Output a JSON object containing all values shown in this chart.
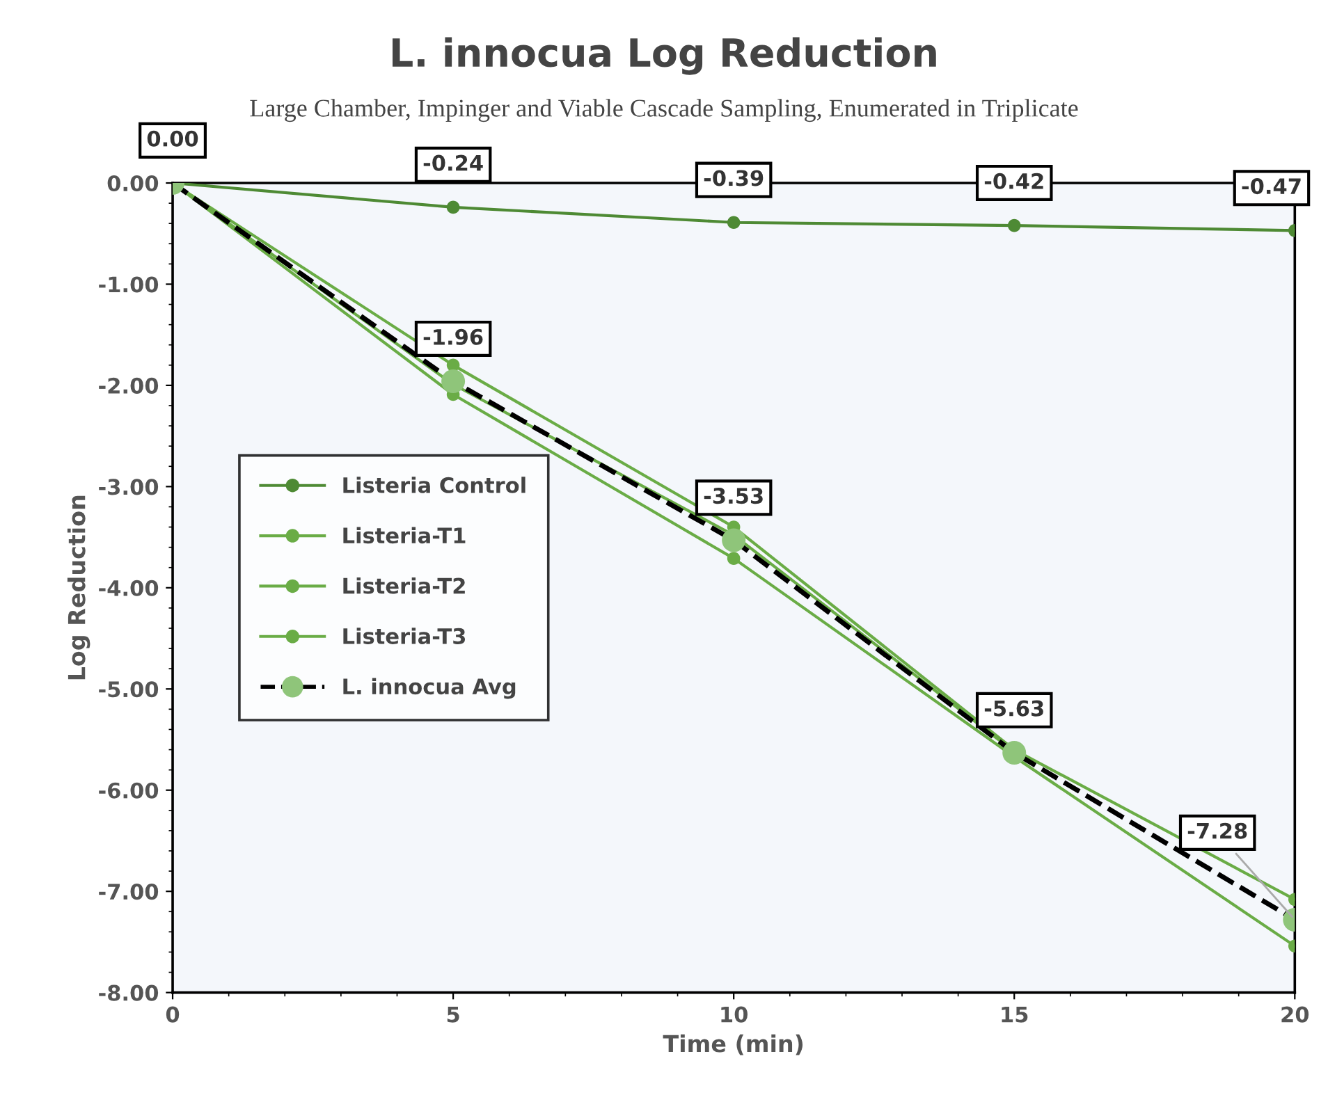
{
  "chart_data": {
    "type": "line",
    "title": "L. innocua Log Reduction",
    "subtitle": "Large Chamber, Impinger and Viable Cascade Sampling, Enumerated in Triplicate",
    "xlabel": "Time (min)",
    "ylabel": "Log Reduction",
    "x": [
      0,
      5,
      10,
      15,
      20
    ],
    "series": [
      {
        "name": "Listeria Control",
        "color": "#4e8a34",
        "values": [
          0,
          -0.24,
          -0.39,
          -0.42,
          -0.47
        ],
        "value_labels": [
          "0.00",
          "-0.24",
          "-0.39",
          "-0.42",
          "-0.47"
        ]
      },
      {
        "name": "Listeria-T1",
        "color": "#6aac46",
        "values": [
          0,
          -1.8,
          -3.4,
          -5.6,
          -7.08
        ]
      },
      {
        "name": "Listeria-T2",
        "color": "#6aac46",
        "values": [
          0,
          -1.99,
          -3.48,
          -5.62,
          null
        ]
      },
      {
        "name": "Listeria-T3",
        "color": "#6aac46",
        "values": [
          0,
          -2.09,
          -3.71,
          -5.67,
          -7.54
        ]
      },
      {
        "name": "L. innocua Avg",
        "color": "#000000",
        "colors": [
          "#8fc57a",
          "#8fc57a",
          "#8fc57a",
          "#8fc57a",
          "#8fc57a"
        ],
        "line_style": "dashed",
        "values": [
          0,
          -1.96,
          -3.53,
          -5.63,
          -7.28
        ],
        "value_labels": [
          null,
          "-1.96",
          "-3.53",
          "-5.63",
          "-7.28"
        ]
      }
    ],
    "xlim": [
      0,
      20
    ],
    "xticks": [
      0,
      5,
      10,
      15,
      20
    ],
    "ylim": [
      -8,
      0
    ],
    "yticks": [
      {
        "value": 0,
        "label": "0.00"
      },
      {
        "value": -1,
        "label": "-1.00"
      },
      {
        "value": -2,
        "label": "-2.00"
      },
      {
        "value": -3,
        "label": "-3.00"
      },
      {
        "value": -4,
        "label": "-4.00"
      },
      {
        "value": -5,
        "label": "-5.00"
      },
      {
        "value": -6,
        "label": "-6.00"
      },
      {
        "value": -7,
        "label": "-7.00"
      },
      {
        "value": -8,
        "label": "-8.00"
      }
    ],
    "marker": "circle",
    "grid": false,
    "legend": "left"
  }
}
